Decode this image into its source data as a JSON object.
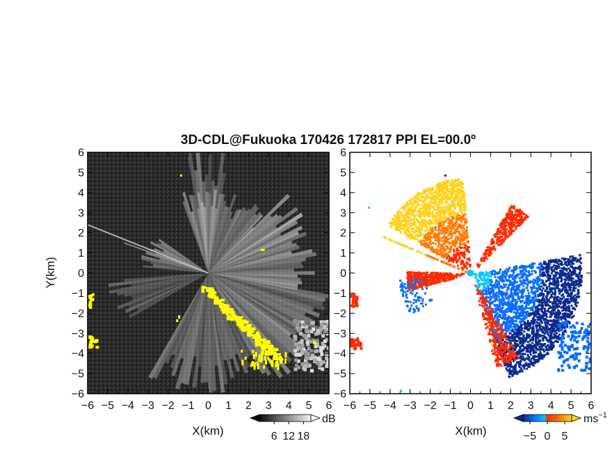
{
  "title": "3D-CDL@Fukuoka 170426 172817 PPI EL=00.0º",
  "chart_data": [
    {
      "type": "heatmap",
      "panel": "reflectivity",
      "xlabel": "X(km)",
      "ylabel": "Y(km)",
      "xlim": [
        -6,
        6
      ],
      "ylim": [
        -6,
        6
      ],
      "xticks": [
        "−6",
        "−5",
        "−4",
        "−3",
        "−2",
        "−1",
        "0",
        "1",
        "2",
        "3",
        "4",
        "5",
        "6"
      ],
      "yticks": [
        "6",
        "5",
        "4",
        "3",
        "2",
        "1",
        "0",
        "−1",
        "−2",
        "−3",
        "−4",
        "−5",
        "−6"
      ],
      "colorbar": {
        "unit": "dB",
        "tick_labels": [
          "6",
          "12",
          "18"
        ],
        "tick_values": [
          6,
          12,
          18
        ],
        "range": [
          0,
          21
        ],
        "colormap": "grayscale",
        "colors": [
          "#0a0a0a",
          "#f5f5f5"
        ]
      },
      "highlight_color": "#ffff00"
    },
    {
      "type": "heatmap",
      "panel": "doppler-velocity",
      "xlabel": "X(km)",
      "xlim": [
        -6,
        6
      ],
      "ylim": [
        -6,
        6
      ],
      "xticks": [
        "−6",
        "−5",
        "−4",
        "−3",
        "−2",
        "−1",
        "0",
        "1",
        "2",
        "3",
        "4",
        "5",
        "6"
      ],
      "yticks": [
        "6",
        "5",
        "4",
        "3",
        "2",
        "1",
        "0",
        "−1",
        "−2",
        "−3",
        "−4",
        "−5",
        "−6"
      ],
      "colorbar": {
        "unit": "ms",
        "unit_superscript": "−1",
        "tick_labels": [
          "−5",
          "0",
          "5"
        ],
        "tick_values": [
          -5,
          0,
          5
        ],
        "range": [
          -7,
          7
        ],
        "colormap": "blue-cyan-red-orange-yellow",
        "colors": [
          "#0a2a8c",
          "#0a6cff",
          "#00c8ff",
          "#ff2a00",
          "#ff7a00",
          "#ffd21a"
        ]
      }
    }
  ]
}
